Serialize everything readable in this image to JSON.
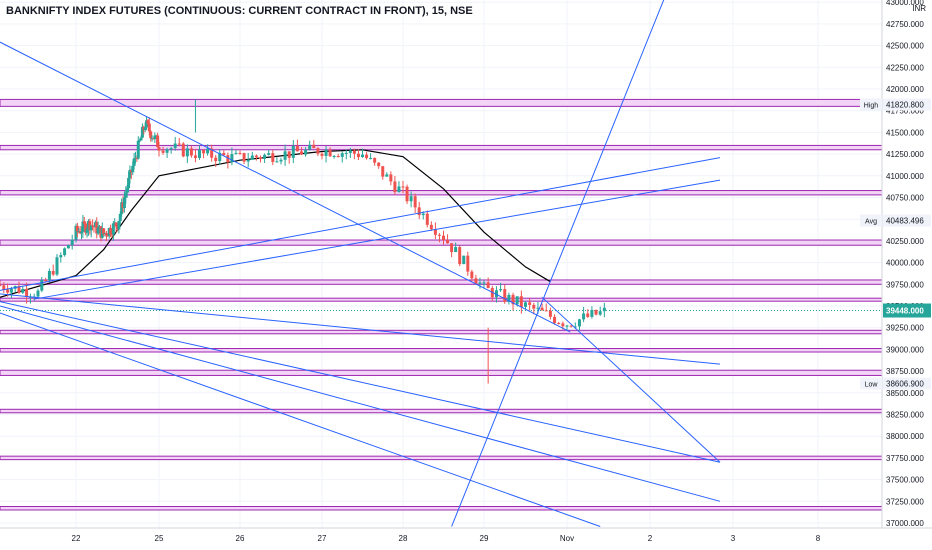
{
  "header": {
    "title": "BANKNIFTY INDEX FUTURES (CONTINUOUS: CURRENT CONTRACT IN FRONT), 15, NSE",
    "currency": "INR"
  },
  "price_labels": {
    "high_tag": "High",
    "high_value": "41820.800",
    "avg_tag": "Avg",
    "avg_value": "40483.496",
    "low_tag": "Low",
    "low_value": "38606.900",
    "last_value": "39448.000"
  },
  "colors": {
    "up": "#26a69a",
    "down": "#ef5350",
    "trendline": "#2962ff",
    "zone_fill": "#f3d4f7",
    "zone_border": "#9c27b0",
    "moving_average": "#000000",
    "last_price_bg": "#26a69a"
  },
  "chart_data": {
    "type": "candlestick",
    "title": "BANKNIFTY INDEX FUTURES (CONTINUOUS: CURRENT CONTRACT IN FRONT), 15, NSE",
    "timeframe": "15",
    "exchange": "NSE",
    "y_axis": {
      "range": [
        36950,
        43000
      ],
      "ticks": [
        "37000.000",
        "37250.000",
        "37500.000",
        "37750.000",
        "38000.000",
        "38250.000",
        "38500.000",
        "38750.000",
        "39000.000",
        "39250.000",
        "39500.000",
        "39750.000",
        "40000.000",
        "40250.000",
        "40500.000",
        "40750.000",
        "41000.000",
        "41250.000",
        "41500.000",
        "41750.000",
        "42000.000",
        "42250.000",
        "42500.000",
        "42750.000",
        "43000.000"
      ]
    },
    "x_axis": {
      "ticks": [
        "22",
        "25",
        "26",
        "27",
        "28",
        "29",
        "Nov",
        "2",
        "3",
        "8"
      ]
    },
    "grid": true,
    "candles_close_approx": [
      [
        21.0,
        39740
      ],
      [
        21.5,
        39650
      ],
      [
        22.0,
        40350
      ],
      [
        22.5,
        40450
      ],
      [
        23.0,
        40330
      ],
      [
        23.5,
        40450
      ],
      [
        24.0,
        41050
      ],
      [
        24.5,
        41600
      ],
      [
        25.0,
        41350
      ],
      [
        25.5,
        41250
      ],
      [
        26.0,
        41200
      ],
      [
        26.5,
        41250
      ],
      [
        27.0,
        41300
      ],
      [
        27.5,
        41250
      ],
      [
        28.0,
        40800
      ],
      [
        28.5,
        40300
      ],
      [
        29.0,
        39700
      ],
      [
        29.5,
        39500
      ],
      [
        30.0,
        39300
      ],
      [
        30.5,
        39448
      ]
    ],
    "moving_average_approx": [
      [
        21.0,
        39600
      ],
      [
        22.0,
        39850
      ],
      [
        23.0,
        40150
      ],
      [
        24.0,
        40600
      ],
      [
        25.0,
        41000
      ],
      [
        26.0,
        41180
      ],
      [
        27.0,
        41280
      ],
      [
        27.5,
        41300
      ],
      [
        28.0,
        41220
      ],
      [
        28.5,
        40850
      ],
      [
        29.0,
        40350
      ],
      [
        29.5,
        39950
      ],
      [
        29.8,
        39780
      ]
    ],
    "horizontal_zones": [
      [
        41800,
        41880
      ],
      [
        41300,
        41350
      ],
      [
        40780,
        40830
      ],
      [
        40200,
        40260
      ],
      [
        39750,
        39800
      ],
      [
        39560,
        39590
      ],
      [
        39180,
        39220
      ],
      [
        38970,
        39010
      ],
      [
        38700,
        38760
      ],
      [
        38270,
        38310
      ],
      [
        37730,
        37770
      ],
      [
        37150,
        37190
      ]
    ],
    "trendlines": [
      [
        [
          21.0,
          39680
        ],
        [
          31.86,
          41210
        ]
      ],
      [
        [
          21.45,
          39580
        ],
        [
          31.86,
          40950
        ]
      ],
      [
        [
          21.0,
          42540
        ],
        [
          30.04,
          39200
        ]
      ],
      [
        [
          29.7,
          39600
        ],
        [
          31.86,
          37700
        ]
      ],
      [
        [
          21.0,
          39640
        ],
        [
          31.86,
          38830
        ]
      ],
      [
        [
          21.0,
          39550
        ],
        [
          31.86,
          37700
        ]
      ],
      [
        [
          21.0,
          39500
        ],
        [
          31.86,
          37250
        ]
      ],
      [
        [
          21.0,
          39420
        ],
        [
          30.4,
          36960
        ]
      ],
      [
        [
          28.6,
          36960
        ],
        [
          31.2,
          43100
        ]
      ]
    ],
    "markers": {
      "high": 41820.8,
      "average": 40483.496,
      "low": 38606.9,
      "last": 39448
    }
  }
}
